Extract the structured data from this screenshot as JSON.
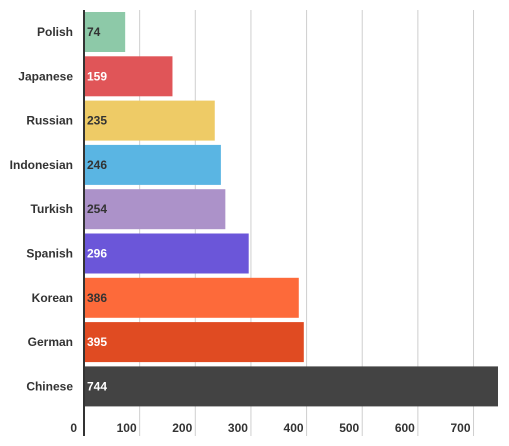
{
  "chart_data": {
    "type": "bar",
    "orientation": "horizontal",
    "title": "",
    "xlabel": "",
    "ylabel": "",
    "categories": [
      "Polish",
      "Japanese",
      "Russian",
      "Indonesian",
      "Turkish",
      "Spanish",
      "Korean",
      "German",
      "Chinese"
    ],
    "values": [
      74,
      159,
      235,
      246,
      254,
      296,
      386,
      395,
      744
    ],
    "colors": [
      "#8dc9a8",
      "#e05558",
      "#eecb66",
      "#5ab5e3",
      "#ac92c9",
      "#6b56d9",
      "#fd6a3a",
      "#e04b22",
      "#434343"
    ],
    "label_colors": [
      "#333333",
      "#ffffff",
      "#333333",
      "#333333",
      "#333333",
      "#ffffff",
      "#333333",
      "#ffffff",
      "#ffffff"
    ],
    "xlim": [
      0,
      744
    ],
    "x_ticks": [
      0,
      100,
      200,
      300,
      400,
      500,
      600,
      700
    ],
    "grid": true,
    "legend": "none"
  }
}
